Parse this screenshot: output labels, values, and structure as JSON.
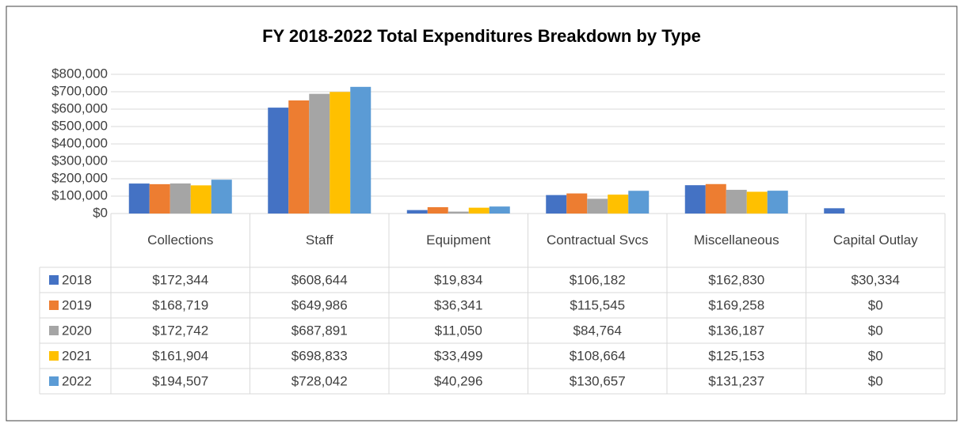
{
  "chart_data": {
    "type": "bar",
    "title": "FY 2018-2022 Total Expenditures Breakdown by Type",
    "categories": [
      "Collections",
      "Staff",
      "Equipment",
      "Contractual Svcs",
      "Miscellaneous",
      "Capital Outlay"
    ],
    "series": [
      {
        "name": "2018",
        "color": "#4472c4",
        "values": [
          172344,
          608644,
          19834,
          106182,
          162830,
          30334
        ],
        "value_labels": [
          "$172,344",
          "$608,644",
          "$19,834",
          "$106,182",
          "$162,830",
          "$30,334"
        ]
      },
      {
        "name": "2019",
        "color": "#ed7d31",
        "values": [
          168719,
          649986,
          36341,
          115545,
          169258,
          0
        ],
        "value_labels": [
          "$168,719",
          "$649,986",
          "$36,341",
          "$115,545",
          "$169,258",
          "$0"
        ]
      },
      {
        "name": "2020",
        "color": "#a5a5a5",
        "values": [
          172742,
          687891,
          11050,
          84764,
          136187,
          0
        ],
        "value_labels": [
          "$172,742",
          "$687,891",
          "$11,050",
          "$84,764",
          "$136,187",
          "$0"
        ]
      },
      {
        "name": "2021",
        "color": "#ffc000",
        "values": [
          161904,
          698833,
          33499,
          108664,
          125153,
          0
        ],
        "value_labels": [
          "$161,904",
          "$698,833",
          "$33,499",
          "$108,664",
          "$125,153",
          "$0"
        ]
      },
      {
        "name": "2022",
        "color": "#5b9bd5",
        "values": [
          194507,
          728042,
          40296,
          130657,
          131237,
          0
        ],
        "value_labels": [
          "$194,507",
          "$728,042",
          "$40,296",
          "$130,657",
          "$131,237",
          "$0"
        ]
      }
    ],
    "ylim": [
      0,
      800000
    ],
    "yticks": [
      {
        "value": 0,
        "label": "$0"
      },
      {
        "value": 100000,
        "label": "$100,000"
      },
      {
        "value": 200000,
        "label": "$200,000"
      },
      {
        "value": 300000,
        "label": "$300,000"
      },
      {
        "value": 400000,
        "label": "$400,000"
      },
      {
        "value": 500000,
        "label": "$500,000"
      },
      {
        "value": 600000,
        "label": "$600,000"
      },
      {
        "value": 700000,
        "label": "$700,000"
      },
      {
        "value": 800000,
        "label": "$800,000"
      }
    ],
    "grid": true
  }
}
